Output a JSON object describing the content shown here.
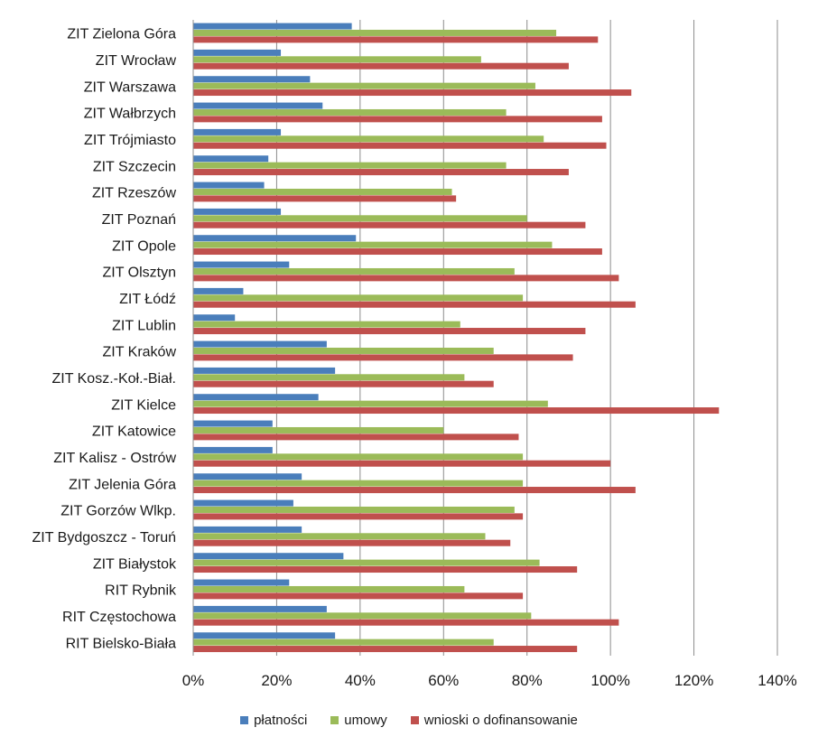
{
  "chart_data": {
    "type": "bar",
    "orientation": "horizontal",
    "categories": [
      "ZIT Zielona Góra",
      "ZIT Wrocław",
      "ZIT Warszawa",
      "ZIT Wałbrzych",
      "ZIT Trójmiasto",
      "ZIT Szczecin",
      "ZIT Rzeszów",
      "ZIT Poznań",
      "ZIT Opole",
      "ZIT Olsztyn",
      "ZIT Łódź",
      "ZIT Lublin",
      "ZIT Kraków",
      "ZIT Kosz.-Koł.-Biał.",
      "ZIT Kielce",
      "ZIT Katowice",
      "ZIT Kalisz - Ostrów",
      "ZIT Jelenia Góra",
      "ZIT Gorzów Wlkp.",
      "ZIT Bydgoszcz - Toruń",
      "ZIT Białystok",
      "RIT Rybnik",
      "RIT Częstochowa",
      "RIT Bielsko-Biała"
    ],
    "series": [
      {
        "name": "płatności",
        "color": "#4a7ebb",
        "values": [
          0.38,
          0.21,
          0.28,
          0.31,
          0.21,
          0.18,
          0.17,
          0.21,
          0.39,
          0.23,
          0.12,
          0.1,
          0.32,
          0.34,
          0.3,
          0.19,
          0.19,
          0.26,
          0.24,
          0.26,
          0.36,
          0.23,
          0.32,
          0.34
        ]
      },
      {
        "name": "umowy",
        "color": "#9bbb59",
        "values": [
          0.87,
          0.69,
          0.82,
          0.75,
          0.84,
          0.75,
          0.62,
          0.8,
          0.86,
          0.77,
          0.79,
          0.64,
          0.72,
          0.65,
          0.85,
          0.6,
          0.79,
          0.79,
          0.77,
          0.7,
          0.83,
          0.65,
          0.81,
          0.72
        ]
      },
      {
        "name": "wnioski o dofinansowanie",
        "color": "#c0504d",
        "values": [
          0.97,
          0.9,
          1.05,
          0.98,
          0.99,
          0.9,
          0.63,
          0.94,
          0.98,
          1.02,
          1.06,
          0.94,
          0.91,
          0.72,
          1.26,
          0.78,
          1.0,
          1.06,
          0.79,
          0.76,
          0.92,
          0.79,
          1.02,
          0.92
        ]
      }
    ],
    "xlim": [
      0,
      1.4
    ],
    "xticks": [
      0,
      0.2,
      0.4,
      0.6,
      0.8,
      1.0,
      1.2,
      1.4
    ],
    "xtick_labels": [
      "0%",
      "20%",
      "40%",
      "60%",
      "80%",
      "100%",
      "120%",
      "140%"
    ],
    "grid": "vertical",
    "legend": "bottom",
    "title": "",
    "xlabel": "",
    "ylabel": ""
  }
}
